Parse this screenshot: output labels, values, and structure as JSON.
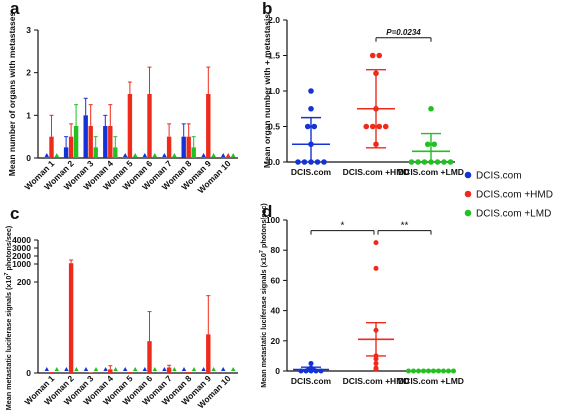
{
  "colors": {
    "DCIS.com": "#1433d6",
    "DCIS.com +HMD": "#ee2a1b",
    "DCIS.com +LMD": "#22c022",
    "axis": "#111111"
  },
  "legend": {
    "placement": "right",
    "entries": [
      {
        "label": "DCIS.com",
        "color": "#1433d6"
      },
      {
        "label": "DCIS.com +HMD",
        "color": "#ee2a1b"
      },
      {
        "label": "DCIS.com +LMD",
        "color": "#22c022"
      }
    ]
  },
  "chart_data": [
    {
      "panel": "a",
      "type": "bar",
      "ylabel": "Mean number of organs with metastases",
      "ylim": [
        0,
        3
      ],
      "yticks": [
        "0",
        "1",
        "2",
        "3"
      ],
      "categories": [
        "Woman 1",
        "Woman 2",
        "Woman 3",
        "Woman 4",
        "Woman 5",
        "Woman 6",
        "Woman 7",
        "Woman 8",
        "Woman 9",
        "Woman 10"
      ],
      "series": [
        {
          "key": "DCIS.com",
          "values": [
            0,
            0.25,
            1.0,
            0.75,
            0,
            0,
            0,
            0.5,
            0,
            0
          ],
          "errors": [
            0,
            0.25,
            0.4,
            0.25,
            0,
            0,
            0,
            0.3,
            0,
            0
          ]
        },
        {
          "key": "DCIS.com +HMD",
          "values": [
            0.5,
            0.5,
            0.75,
            0.75,
            1.5,
            1.5,
            0.5,
            0.5,
            1.5,
            0
          ],
          "errors": [
            0.5,
            0.3,
            0.5,
            0.5,
            0.28,
            0.63,
            0.3,
            0.3,
            0.63,
            0
          ]
        },
        {
          "key": "DCIS.com +LMD",
          "values": [
            0,
            0.75,
            0.25,
            0.25,
            0,
            0,
            0,
            0.25,
            0,
            0
          ],
          "errors": [
            0,
            0.5,
            0.25,
            0.25,
            0,
            0,
            0,
            0.25,
            0,
            0
          ]
        }
      ]
    },
    {
      "panel": "b",
      "type": "scatter",
      "ylabel": "Mean organ number with + metastasis",
      "ylim": [
        0,
        2.0
      ],
      "yticks": [
        "0.0",
        "0.5",
        "1.0",
        "1.5",
        "2.0"
      ],
      "categories": [
        "DCIS.com",
        "DCIS.com +HMD",
        "DCIS.com +LMD"
      ],
      "series": [
        {
          "key": "DCIS.com",
          "points": [
            1.0,
            0.75,
            0.5,
            0.5,
            0.25,
            0,
            0,
            0,
            0,
            0
          ],
          "mean": 0.25,
          "error": 0.375
        },
        {
          "key": "DCIS.com +HMD",
          "points": [
            1.5,
            1.5,
            1.25,
            0.75,
            0.5,
            0.5,
            0.5,
            0.5,
            0.25
          ],
          "mean": 0.75,
          "error": 0.55
        },
        {
          "key": "DCIS.com +LMD",
          "points": [
            0.75,
            0.25,
            0.25,
            0,
            0,
            0,
            0,
            0,
            0,
            0
          ],
          "mean": 0.15,
          "error": 0.25
        }
      ],
      "annotation": "P=0.0234"
    },
    {
      "panel": "c",
      "type": "bar",
      "ylabel_main": "Mean metastatic luciferase signals (x10",
      "ylabel_exp": "7",
      "ylabel_tail": " photons/sec)",
      "yticks": [
        "0",
        "200",
        "1000",
        "2000",
        "3000",
        "4000"
      ],
      "categories": [
        "Woman 1",
        "Woman 2",
        "Woman 3",
        "Woman 4",
        "Woman 5",
        "Woman 6",
        "Woman 7",
        "Woman 8",
        "Woman 9",
        "Woman 10"
      ],
      "series": [
        {
          "key": "DCIS.com",
          "values": [
            0,
            0,
            0,
            0,
            0,
            0,
            0,
            0,
            0,
            0
          ],
          "errors": [
            0,
            0,
            0,
            0,
            0,
            0,
            0,
            0,
            0,
            0
          ]
        },
        {
          "key": "DCIS.com +HMD",
          "values": [
            2,
            1100,
            1,
            8,
            2,
            70,
            12,
            2,
            85,
            0
          ],
          "errors": [
            0,
            400,
            0,
            8,
            0,
            65,
            5,
            0,
            85,
            0
          ]
        },
        {
          "key": "DCIS.com +LMD",
          "values": [
            0,
            0,
            0,
            0,
            0,
            0,
            0,
            0,
            0,
            0
          ],
          "errors": [
            0,
            0,
            0,
            0,
            0,
            0,
            0,
            0,
            0,
            0
          ]
        }
      ]
    },
    {
      "panel": "d",
      "type": "scatter",
      "ylabel_main": "Mean metastatic luciferase signals (x10",
      "ylabel_exp": "7",
      "ylabel_tail": " photons/sec)",
      "ylim": [
        0,
        100
      ],
      "yticks": [
        "0",
        "20",
        "40",
        "60",
        "80",
        "100"
      ],
      "categories": [
        "DCIS.com",
        "DCIS.com +HMD",
        "DCIS.com +LMD"
      ],
      "series": [
        {
          "key": "DCIS.com",
          "points": [
            5,
            2,
            1,
            1,
            0,
            0,
            0,
            0,
            0
          ],
          "mean": 1,
          "error": 1.5
        },
        {
          "key": "DCIS.com +HMD",
          "points": [
            85,
            68,
            27,
            10,
            8,
            5,
            2,
            1
          ],
          "mean": 21,
          "error": 11
        },
        {
          "key": "DCIS.com +LMD",
          "points": [
            0,
            0,
            0,
            0,
            0,
            0,
            0,
            0,
            0,
            0
          ],
          "mean": 0,
          "error": 0.5
        }
      ],
      "significance": [
        {
          "from": 0,
          "to": 1,
          "label": "*"
        },
        {
          "from": 1,
          "to": 2,
          "label": "**"
        }
      ]
    }
  ],
  "panel_labels": [
    "a",
    "b",
    "c",
    "d"
  ]
}
